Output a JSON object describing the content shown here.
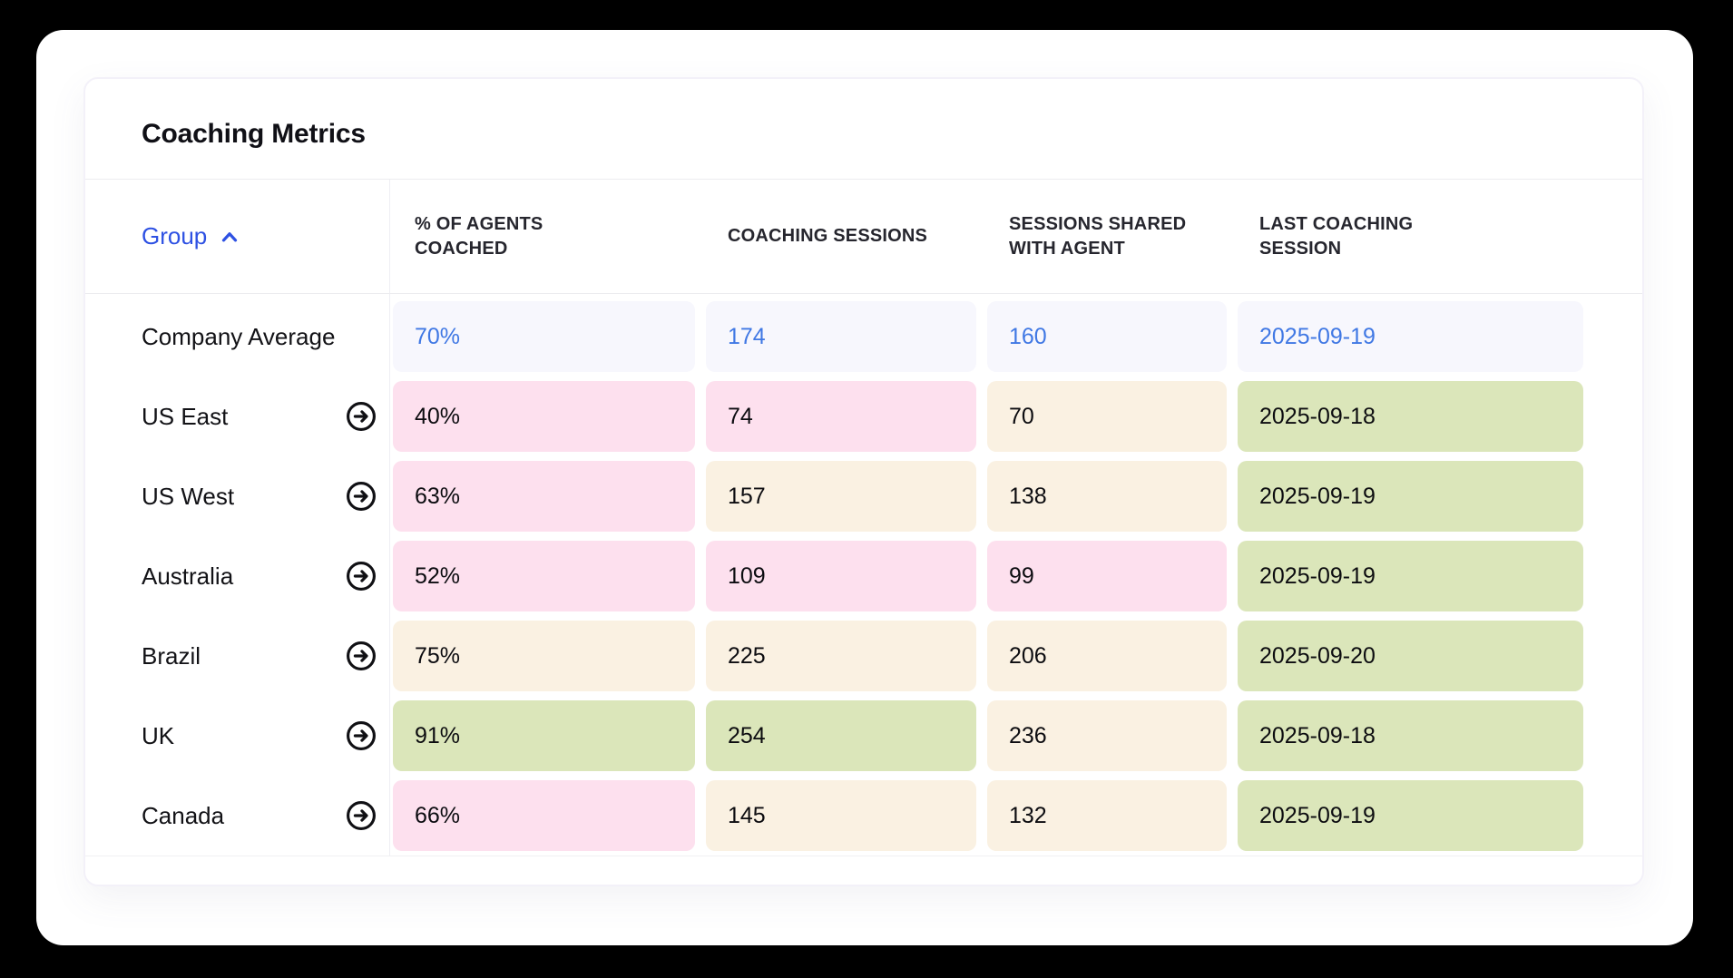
{
  "card": {
    "title": "Coaching Metrics"
  },
  "table": {
    "group_header": {
      "label": "Group",
      "sort_icon": "chevron-up-icon"
    },
    "columns": [
      "% OF AGENTS COACHED",
      "COACHING SESSIONS",
      "SESSIONS SHARED WITH AGENT",
      "LAST COACHING SESSION"
    ],
    "rows": [
      {
        "group": "Company Average",
        "is_average": true,
        "values": [
          "70%",
          "174",
          "160",
          "2025-09-19"
        ],
        "cell_tones": [
          "average",
          "average",
          "average",
          "average"
        ]
      },
      {
        "group": "US East",
        "is_average": false,
        "values": [
          "40%",
          "74",
          "70",
          "2025-09-18"
        ],
        "cell_tones": [
          "pink",
          "pink",
          "cream",
          "green"
        ]
      },
      {
        "group": "US West",
        "is_average": false,
        "values": [
          "63%",
          "157",
          "138",
          "2025-09-19"
        ],
        "cell_tones": [
          "pink",
          "cream",
          "cream",
          "green"
        ]
      },
      {
        "group": "Australia",
        "is_average": false,
        "values": [
          "52%",
          "109",
          "99",
          "2025-09-19"
        ],
        "cell_tones": [
          "pink",
          "pink",
          "pink",
          "green"
        ]
      },
      {
        "group": "Brazil",
        "is_average": false,
        "values": [
          "75%",
          "225",
          "206",
          "2025-09-20"
        ],
        "cell_tones": [
          "cream",
          "cream",
          "cream",
          "green"
        ]
      },
      {
        "group": "UK",
        "is_average": false,
        "values": [
          "91%",
          "254",
          "236",
          "2025-09-18"
        ],
        "cell_tones": [
          "green",
          "green",
          "cream",
          "green"
        ]
      },
      {
        "group": "Canada",
        "is_average": false,
        "values": [
          "66%",
          "145",
          "132",
          "2025-09-19"
        ],
        "cell_tones": [
          "pink",
          "cream",
          "cream",
          "green"
        ]
      }
    ],
    "colors": {
      "pink_bad": "#fde0ee",
      "cream_mid": "#faf1e2",
      "green_good": "#dbe6ba",
      "average_row_bg": "#f7f7fd",
      "average_value_text": "#4078e4",
      "group_header_blue": "#2e51e3",
      "page_background": "#000000"
    }
  }
}
